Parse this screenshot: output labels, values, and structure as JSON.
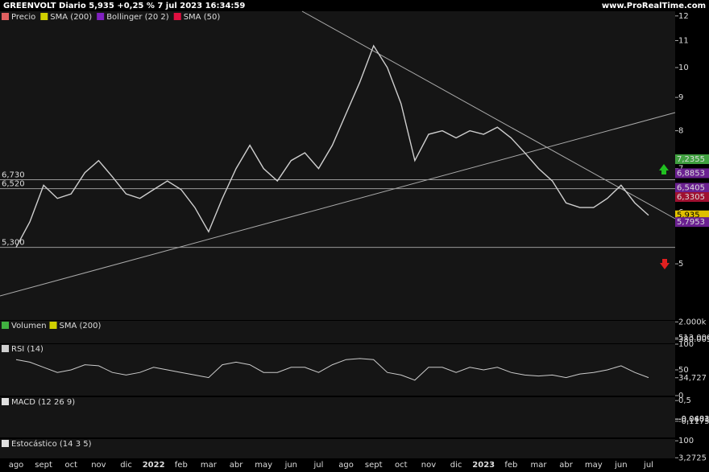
{
  "header": {
    "title": "GREENVOLT Diario 5,935 +0,25 % 7 jul 2023 16:34:59",
    "site": "www.ProRealTime.com"
  },
  "legend": [
    {
      "name": "Precio",
      "color": "#e06060"
    },
    {
      "name": "SMA (200)",
      "color": "#d0d000"
    },
    {
      "name": "Bollinger (20 2)",
      "color": "#8020c0"
    },
    {
      "name": "SMA (50)",
      "color": "#e01040"
    }
  ],
  "chart_data": {
    "type": "line",
    "log_scale": true,
    "categories": [
      "ago",
      null,
      "sept",
      null,
      "oct",
      null,
      "nov",
      null,
      "dic",
      null,
      "2022",
      null,
      "feb",
      null,
      "mar",
      null,
      "abr",
      null,
      "may",
      null,
      "jun",
      null,
      "jul",
      null,
      "ago",
      null,
      "sept",
      null,
      "oct",
      null,
      "nov",
      null,
      "dic",
      null,
      "2023",
      null,
      "feb",
      null,
      "mar",
      null,
      "abr",
      null,
      "may",
      null,
      "jun",
      null,
      "jul"
    ],
    "series": [
      {
        "name": "Precio",
        "color": "#cfcfcf",
        "values": [
          5.3,
          5.8,
          6.6,
          6.3,
          6.4,
          6.9,
          7.2,
          6.8,
          6.4,
          6.3,
          6.5,
          6.7,
          6.5,
          6.1,
          5.6,
          6.3,
          7.0,
          7.6,
          7.0,
          6.7,
          7.2,
          7.4,
          7.0,
          7.6,
          8.5,
          9.5,
          10.8,
          10.0,
          8.8,
          7.2,
          7.9,
          8.0,
          7.8,
          8.0,
          7.9,
          8.1,
          7.8,
          7.4,
          7.0,
          6.7,
          6.2,
          6.1,
          6.1,
          6.3,
          6.6,
          6.2,
          5.935
        ]
      }
    ],
    "ylim": [
      4.1,
      12.2
    ],
    "yticks": [
      5,
      6,
      7,
      8,
      9,
      10,
      11,
      12
    ],
    "levels": [
      {
        "value": 6.73,
        "label": "6,730"
      },
      {
        "value": 6.52,
        "label": "6,520"
      },
      {
        "value": 5.3,
        "label": "5,300"
      }
    ],
    "price_labels": [
      {
        "value": 7.2355,
        "label": "7,2355",
        "color": "#40a040"
      },
      {
        "value": 6.8853,
        "label": "6,8853",
        "color": "#6a2090"
      },
      {
        "value": 6.5405,
        "label": "6,5405",
        "color": "#6a2090"
      },
      {
        "value": 6.3305,
        "label": "6,3305",
        "color": "#a01030"
      },
      {
        "value": 5.935,
        "label": "5,935",
        "color": "#e0c000"
      },
      {
        "value": 5.7953,
        "label": "5,7953",
        "color": "#6a2090"
      }
    ]
  },
  "panels": [
    {
      "labels": [
        "Volumen",
        "SMA (200)"
      ],
      "colors": [
        "#40b040",
        "#d0d000"
      ],
      "ticks": [
        {
          "value": 2000000,
          "label": "2.000k"
        },
        {
          "value": 513000,
          "label": "513.000"
        },
        {
          "value": 380005,
          "label": "380.005"
        }
      ]
    },
    {
      "labels": [
        "RSI (14)"
      ],
      "colors": [
        "#d0d0d0"
      ],
      "ticks": [
        100,
        50,
        {
          "value": 34.727,
          "label": "34,727"
        },
        0
      ],
      "ylim": [
        0,
        100
      ],
      "values": [
        70,
        65,
        55,
        45,
        50,
        60,
        58,
        45,
        40,
        45,
        55,
        50,
        45,
        40,
        35,
        60,
        65,
        60,
        45,
        45,
        55,
        55,
        45,
        60,
        70,
        72,
        70,
        45,
        40,
        30,
        55,
        55,
        45,
        55,
        50,
        55,
        45,
        40,
        38,
        40,
        35,
        42,
        45,
        50,
        58,
        45,
        35
      ]
    },
    {
      "labels": [
        "MACD (12 26 9)"
      ],
      "colors": [
        "#e0e0e0"
      ],
      "ticks": [
        {
          "value": 0.5,
          "label": "0,5"
        },
        {
          "value": -0.0483,
          "label": "-0,0483"
        },
        {
          "value": -0.0601,
          "label": "-0,0601"
        },
        {
          "value": -0.1175,
          "label": "-0,1175"
        }
      ],
      "ylim": [
        -0.6,
        0.6
      ]
    },
    {
      "labels": [
        "Estocástico (14 3 5)"
      ],
      "colors": [
        "#e0e0e0"
      ],
      "ticks": [
        100,
        {
          "value": 3.2725,
          "label": "3,2725"
        }
      ],
      "ylim": [
        0,
        110
      ]
    }
  ]
}
